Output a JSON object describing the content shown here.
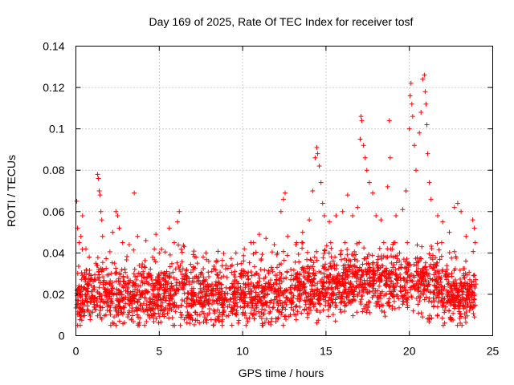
{
  "chart_data": {
    "type": "scatter",
    "title": "Day 169 of 2025, Rate Of TEC Index for receiver tosf",
    "xlabel": "GPS time / hours",
    "ylabel": "ROTI / TECUs",
    "xlim": [
      0,
      25
    ],
    "ylim": [
      0,
      0.14
    ],
    "grid": true,
    "marker": "+",
    "color": "#ff0000",
    "xticks": [
      "0",
      "5",
      "10",
      "15",
      "20",
      "25"
    ],
    "yticks": [
      "0",
      "0.02",
      "0.04",
      "0.06",
      "0.08",
      "0.1",
      "0.12",
      "0.14"
    ],
    "series": [
      {
        "name": "ROTI",
        "points": [
          [
            0.05,
            0.065
          ],
          [
            0.1,
            0.052
          ],
          [
            0.2,
            0.045
          ],
          [
            0.3,
            0.048
          ],
          [
            0.4,
            0.058
          ],
          [
            0.6,
            0.042
          ],
          [
            0.8,
            0.038
          ],
          [
            1.2,
            0.035
          ],
          [
            1.3,
            0.078
          ],
          [
            1.35,
            0.076
          ],
          [
            1.4,
            0.07
          ],
          [
            1.45,
            0.068
          ],
          [
            1.5,
            0.06
          ],
          [
            1.55,
            0.056
          ],
          [
            1.6,
            0.048
          ],
          [
            2.2,
            0.05
          ],
          [
            2.4,
            0.06
          ],
          [
            2.5,
            0.058
          ],
          [
            2.6,
            0.052
          ],
          [
            2.8,
            0.045
          ],
          [
            3.2,
            0.044
          ],
          [
            3.5,
            0.069
          ],
          [
            3.7,
            0.048
          ],
          [
            4.2,
            0.046
          ],
          [
            4.8,
            0.049
          ],
          [
            5.0,
            0.04
          ],
          [
            5.6,
            0.052
          ],
          [
            5.9,
            0.045
          ],
          [
            6.1,
            0.055
          ],
          [
            6.2,
            0.06
          ],
          [
            6.5,
            0.043
          ],
          [
            7.2,
            0.038
          ],
          [
            7.8,
            0.04
          ],
          [
            8.5,
            0.036
          ],
          [
            9.0,
            0.034
          ],
          [
            9.6,
            0.04
          ],
          [
            10.1,
            0.042
          ],
          [
            10.5,
            0.045
          ],
          [
            11.0,
            0.049
          ],
          [
            11.4,
            0.047
          ],
          [
            11.9,
            0.044
          ],
          [
            12.3,
            0.06
          ],
          [
            12.45,
            0.066
          ],
          [
            12.55,
            0.069
          ],
          [
            12.7,
            0.048
          ],
          [
            13.2,
            0.044
          ],
          [
            13.6,
            0.05
          ],
          [
            14.0,
            0.056
          ],
          [
            14.2,
            0.07
          ],
          [
            14.35,
            0.086
          ],
          [
            14.45,
            0.091
          ],
          [
            14.5,
            0.088
          ],
          [
            14.6,
            0.082
          ],
          [
            14.7,
            0.074
          ],
          [
            14.8,
            0.064
          ],
          [
            14.9,
            0.058
          ],
          [
            15.2,
            0.055
          ],
          [
            15.6,
            0.058
          ],
          [
            16.0,
            0.06
          ],
          [
            16.3,
            0.068
          ],
          [
            16.6,
            0.058
          ],
          [
            16.9,
            0.062
          ],
          [
            17.05,
            0.095
          ],
          [
            17.1,
            0.106
          ],
          [
            17.15,
            0.104
          ],
          [
            17.25,
            0.092
          ],
          [
            17.35,
            0.086
          ],
          [
            17.45,
            0.08
          ],
          [
            17.6,
            0.074
          ],
          [
            17.8,
            0.069
          ],
          [
            18.0,
            0.058
          ],
          [
            18.3,
            0.056
          ],
          [
            18.7,
            0.072
          ],
          [
            18.8,
            0.104
          ],
          [
            18.85,
            0.086
          ],
          [
            19.2,
            0.058
          ],
          [
            19.6,
            0.061
          ],
          [
            19.8,
            0.07
          ],
          [
            20.0,
            0.1
          ],
          [
            20.05,
            0.116
          ],
          [
            20.1,
            0.122
          ],
          [
            20.15,
            0.112
          ],
          [
            20.2,
            0.106
          ],
          [
            20.3,
            0.092
          ],
          [
            20.4,
            0.08
          ],
          [
            20.6,
            0.098
          ],
          [
            20.7,
            0.108
          ],
          [
            20.8,
            0.124
          ],
          [
            20.9,
            0.126
          ],
          [
            20.95,
            0.118
          ],
          [
            21.0,
            0.112
          ],
          [
            21.05,
            0.102
          ],
          [
            21.1,
            0.088
          ],
          [
            21.2,
            0.074
          ],
          [
            21.3,
            0.066
          ],
          [
            21.7,
            0.058
          ],
          [
            22.0,
            0.055
          ],
          [
            22.4,
            0.05
          ],
          [
            22.7,
            0.062
          ],
          [
            22.9,
            0.064
          ],
          [
            23.1,
            0.06
          ],
          [
            23.4,
            0.048
          ],
          [
            23.8,
            0.056
          ],
          [
            23.9,
            0.052
          ],
          [
            23.95,
            0.045
          ]
        ]
      }
    ]
  }
}
